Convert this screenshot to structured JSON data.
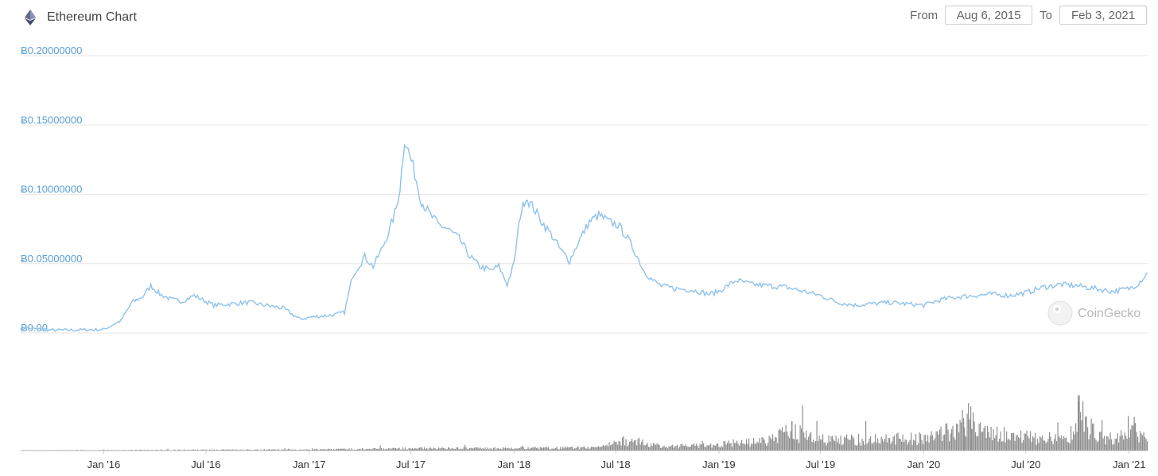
{
  "header": {
    "title": "Ethereum Chart",
    "icon": "ethereum-icon",
    "from_label": "From",
    "from_value": "Aug 6, 2015",
    "to_label": "To",
    "to_value": "Feb 3, 2021"
  },
  "watermark": {
    "text": "CoinGecko",
    "icon": "gecko-logo-icon"
  },
  "colors": {
    "line": "#8ec2ec",
    "grid": "#e6e6e6",
    "ytick": "#5aa0d8",
    "volume": "#8f8f8f"
  },
  "chart_data": {
    "type": "line",
    "series": [
      {
        "x": [
          "2015-08-06",
          "2015-09-01",
          "2015-10-01",
          "2015-11-01",
          "2015-12-01",
          "2016-01-01",
          "2016-02-01",
          "2016-02-20",
          "2016-03-10",
          "2016-03-25",
          "2016-04-10",
          "2016-05-01",
          "2016-05-20",
          "2016-06-10",
          "2016-06-25",
          "2016-07-15",
          "2016-08-15",
          "2016-09-15",
          "2016-10-15",
          "2016-11-15",
          "2016-12-15",
          "2017-01-15",
          "2017-02-15",
          "2017-03-05",
          "2017-03-20",
          "2017-04-10",
          "2017-04-25",
          "2017-05-10",
          "2017-05-25",
          "2017-06-05",
          "2017-06-12",
          "2017-06-20",
          "2017-07-05",
          "2017-07-20",
          "2017-08-05",
          "2017-08-20",
          "2017-09-05",
          "2017-09-25",
          "2017-10-15",
          "2017-11-01",
          "2017-11-20",
          "2017-12-05",
          "2017-12-20",
          "2018-01-01",
          "2018-01-12",
          "2018-01-22",
          "2018-02-05",
          "2018-02-20",
          "2018-03-10",
          "2018-03-25",
          "2018-04-10",
          "2018-04-25",
          "2018-05-15",
          "2018-06-01",
          "2018-06-20",
          "2018-07-05",
          "2018-07-20",
          "2018-08-05",
          "2018-08-20",
          "2018-09-05",
          "2018-09-20",
          "2018-10-15",
          "2018-11-15",
          "2018-12-15",
          "2019-01-01",
          "2019-02-01",
          "2019-03-01",
          "2019-04-01",
          "2019-05-01",
          "2019-06-01",
          "2019-07-01",
          "2019-08-01",
          "2019-09-01",
          "2019-10-01",
          "2019-11-01",
          "2019-12-01",
          "2020-01-01",
          "2020-02-01",
          "2020-03-01",
          "2020-04-01",
          "2020-05-01",
          "2020-06-01",
          "2020-07-01",
          "2020-08-01",
          "2020-09-01",
          "2020-10-01",
          "2020-11-01",
          "2020-12-01",
          "2021-01-01",
          "2021-01-15",
          "2021-02-03"
        ],
        "y": [
          0.004,
          0.003,
          0.002,
          0.0021,
          0.0023,
          0.0025,
          0.009,
          0.022,
          0.026,
          0.034,
          0.028,
          0.024,
          0.023,
          0.027,
          0.024,
          0.02,
          0.021,
          0.022,
          0.02,
          0.018,
          0.01,
          0.012,
          0.013,
          0.015,
          0.042,
          0.055,
          0.048,
          0.06,
          0.075,
          0.09,
          0.105,
          0.14,
          0.12,
          0.095,
          0.085,
          0.078,
          0.075,
          0.068,
          0.055,
          0.048,
          0.045,
          0.048,
          0.035,
          0.05,
          0.085,
          0.098,
          0.09,
          0.08,
          0.07,
          0.06,
          0.052,
          0.065,
          0.08,
          0.085,
          0.08,
          0.078,
          0.07,
          0.058,
          0.045,
          0.038,
          0.034,
          0.032,
          0.031,
          0.028,
          0.03,
          0.038,
          0.035,
          0.034,
          0.033,
          0.03,
          0.027,
          0.022,
          0.02,
          0.021,
          0.022,
          0.021,
          0.02,
          0.024,
          0.026,
          0.027,
          0.028,
          0.027,
          0.029,
          0.033,
          0.035,
          0.034,
          0.032,
          0.03,
          0.032,
          0.035,
          0.043
        ]
      }
    ],
    "volume_series": {
      "x": [
        "2015-08-06",
        "2016-01-01",
        "2016-06-01",
        "2017-01-01",
        "2017-06-01",
        "2018-01-01",
        "2018-06-01",
        "2018-07-15",
        "2018-10-01",
        "2019-01-01",
        "2019-04-01",
        "2019-05-10",
        "2019-07-01",
        "2019-10-01",
        "2020-01-01",
        "2020-03-01",
        "2020-03-20",
        "2020-04-15",
        "2020-06-01",
        "2020-08-01",
        "2020-09-15",
        "2020-10-01",
        "2020-11-15",
        "2020-12-15",
        "2021-01-10",
        "2021-02-03"
      ],
      "y": [
        0.001,
        0.002,
        0.003,
        0.004,
        0.008,
        0.01,
        0.012,
        0.04,
        0.015,
        0.025,
        0.04,
        0.08,
        0.04,
        0.045,
        0.05,
        0.09,
        0.13,
        0.07,
        0.06,
        0.05,
        0.045,
        0.15,
        0.045,
        0.055,
        0.09,
        0.03
      ]
    },
    "ylim": [
      0,
      0.2
    ],
    "yticks": [
      {
        "value": 0,
        "label": "Ƀ0.00"
      },
      {
        "value": 0.05,
        "label": "Ƀ0.05000000"
      },
      {
        "value": 0.1,
        "label": "Ƀ0.10000000"
      },
      {
        "value": 0.15,
        "label": "Ƀ0.15000000"
      },
      {
        "value": 0.2,
        "label": "Ƀ0.20000000"
      }
    ],
    "xticks": [
      {
        "date": "2016-01-01",
        "label": "Jan '16"
      },
      {
        "date": "2016-07-01",
        "label": "Jul '16"
      },
      {
        "date": "2017-01-01",
        "label": "Jan '17"
      },
      {
        "date": "2017-07-01",
        "label": "Jul '17"
      },
      {
        "date": "2018-01-01",
        "label": "Jan '18"
      },
      {
        "date": "2018-07-01",
        "label": "Jul '18"
      },
      {
        "date": "2019-01-01",
        "label": "Jan '19"
      },
      {
        "date": "2019-07-01",
        "label": "Jul '19"
      },
      {
        "date": "2020-01-01",
        "label": "Jan '20"
      },
      {
        "date": "2020-07-01",
        "label": "Jul '20"
      },
      {
        "date": "2021-01-01",
        "label": "Jan '21"
      }
    ],
    "xlim": [
      "2015-08-06",
      "2021-02-03"
    ],
    "grid": true
  }
}
